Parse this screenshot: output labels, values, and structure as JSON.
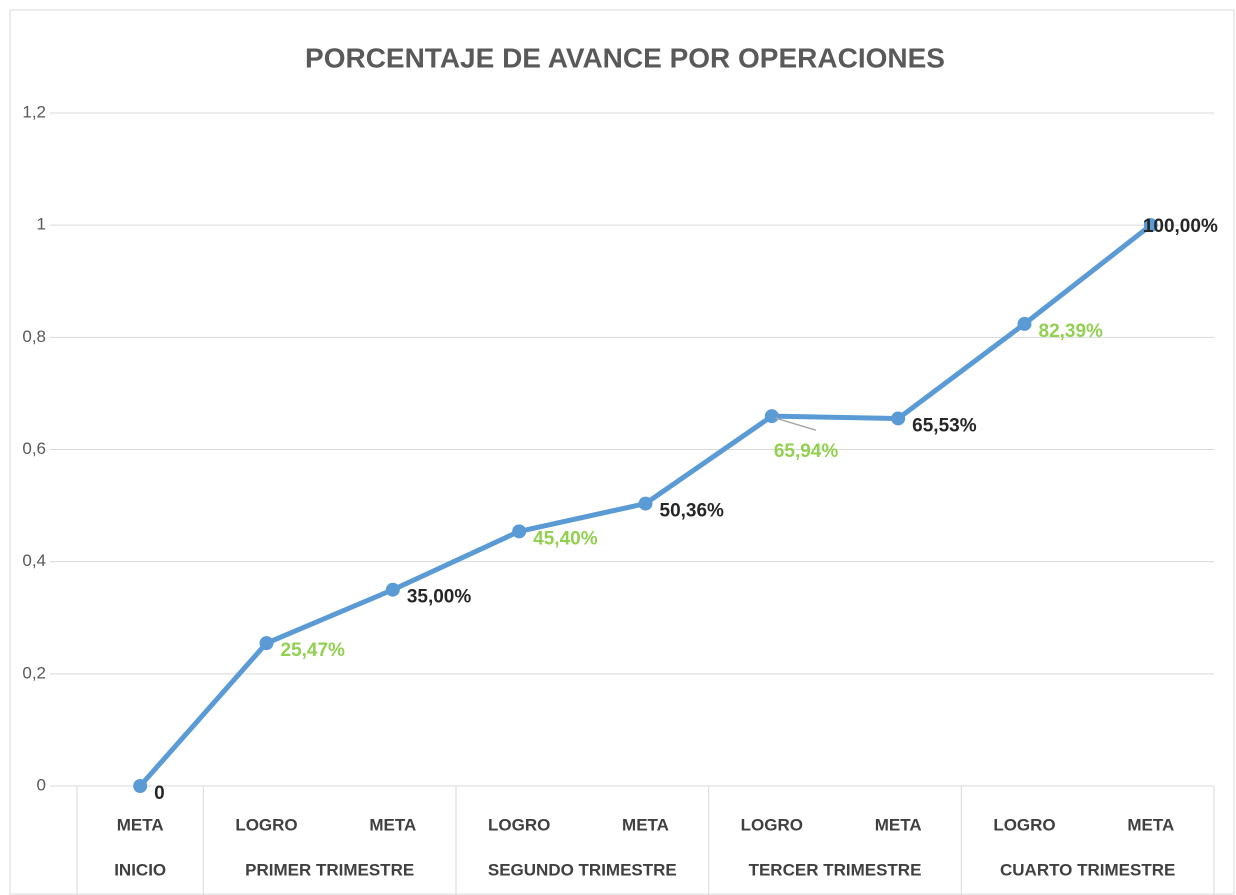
{
  "chart_data": {
    "type": "line",
    "title": "PORCENTAJE DE AVANCE POR OPERACIONES",
    "groups": [
      {
        "label": "INICIO",
        "categories": [
          "META"
        ]
      },
      {
        "label": "PRIMER TRIMESTRE",
        "categories": [
          "LOGRO",
          "META"
        ]
      },
      {
        "label": "SEGUNDO TRIMESTRE",
        "categories": [
          "LOGRO",
          "META"
        ]
      },
      {
        "label": "TERCER TRIMESTRE",
        "categories": [
          "LOGRO",
          "META"
        ]
      },
      {
        "label": "CUARTO TRIMESTRE",
        "categories": [
          "LOGRO",
          "META"
        ]
      }
    ],
    "values": [
      0,
      0.2547,
      0.35,
      0.454,
      0.5036,
      0.6594,
      0.6553,
      0.8239,
      1
    ],
    "value_labels": [
      "0",
      "25,47%",
      "35,00%",
      "45,40%",
      "50,36%",
      "65,94%",
      "65,53%",
      "82,39%",
      "100,00%"
    ],
    "value_label_colors": [
      "#262626",
      "#92d050",
      "#262626",
      "#92d050",
      "#262626",
      "#92d050",
      "#262626",
      "#92d050",
      "#262626"
    ],
    "color": "#5b9bd5",
    "ylim": [
      0,
      1.2
    ],
    "yticks": [
      0,
      {
        "value": 0.2,
        "label": "0,2"
      },
      {
        "value": 0.4,
        "label": "0,4"
      },
      {
        "value": 0.6,
        "label": "0,6"
      },
      {
        "value": 0.8,
        "label": "0,8"
      },
      1,
      {
        "value": 1.2,
        "label": "1,2"
      }
    ],
    "grid": true
  }
}
